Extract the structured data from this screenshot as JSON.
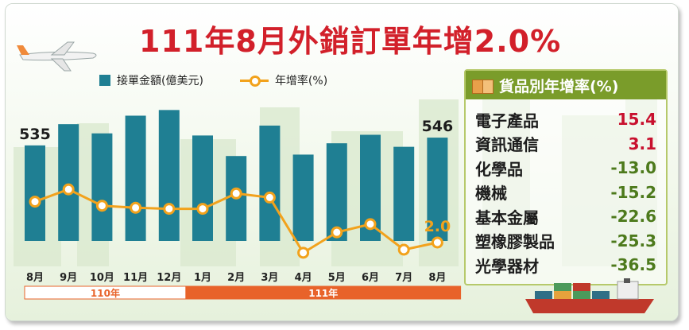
{
  "title": "111年8月外銷訂單年增2.0%",
  "chart_data": {
    "type": "bar+line",
    "categories": [
      "8月",
      "9月",
      "10月",
      "11月",
      "12月",
      "1月",
      "2月",
      "3月",
      "4月",
      "5月",
      "6月",
      "7月",
      "8月"
    ],
    "year_groups": [
      {
        "label": "110年",
        "count": 5
      },
      {
        "label": "111年",
        "count": 8
      }
    ],
    "series": [
      {
        "name": "接單金額(億美元)",
        "kind": "bar",
        "values": [
          535,
          565,
          552,
          577,
          585,
          549,
          520,
          563,
          522,
          538,
          550,
          533,
          546
        ]
      },
      {
        "name": "年增率(%)",
        "kind": "line",
        "values": [
          22,
          28,
          20,
          19,
          18.5,
          18.5,
          26,
          24,
          -3,
          7,
          11,
          -1.5,
          2.0
        ]
      }
    ],
    "bar_labels": [
      {
        "index": 0,
        "text": "535"
      },
      {
        "index": 12,
        "text": "546"
      }
    ],
    "line_labels": [
      {
        "index": 12,
        "text": "2.0"
      }
    ],
    "legend": {
      "bar": "接單金額(億美元)",
      "line": "年增率(%)"
    }
  },
  "panel": {
    "title": "貨品別年增率(%)",
    "rows": [
      {
        "name": "電子產品",
        "value": "15.4",
        "color": "#c8102e"
      },
      {
        "name": "資訊通信",
        "value": "3.1",
        "color": "#c8102e"
      },
      {
        "name": "化學品",
        "value": "-13.0",
        "color": "#4d7a1c"
      },
      {
        "name": "機械",
        "value": "-15.2",
        "color": "#4d7a1c"
      },
      {
        "name": "基本金屬",
        "value": "-22.6",
        "color": "#4d7a1c"
      },
      {
        "name": "塑橡膠製品",
        "value": "-25.3",
        "color": "#4d7a1c"
      },
      {
        "name": "光學器材",
        "value": "-36.5",
        "color": "#4d7a1c"
      }
    ]
  },
  "colors": {
    "title": "#d2202a",
    "bar": "#1f7f93",
    "line": "#f2a21c",
    "year110_fill": "#ffffff",
    "year110_border": "#e8632a",
    "year111_fill": "#e8632a",
    "panel_header": "#7a9c2a"
  }
}
